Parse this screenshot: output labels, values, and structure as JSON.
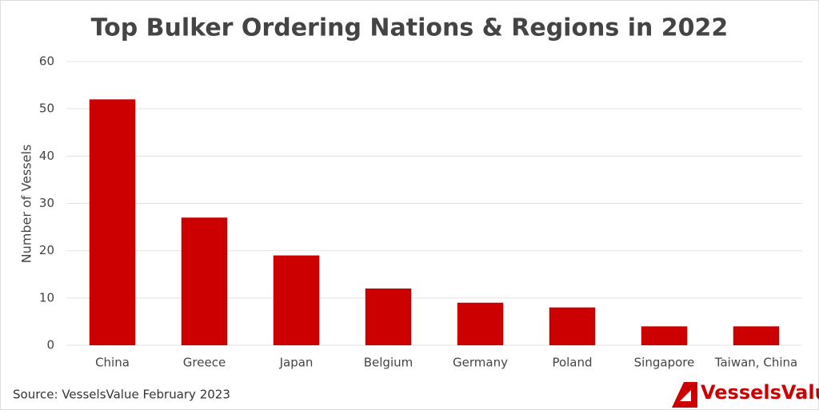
{
  "chart_data": {
    "type": "bar",
    "title": "Top Bulker Ordering Nations & Regions in 2022",
    "y_label": "Number of Vessels",
    "categories": [
      "China",
      "Greece",
      "Japan",
      "Belgium",
      "Germany",
      "Poland",
      "Singapore",
      "Taiwan, China"
    ],
    "values": [
      52,
      27,
      19,
      12,
      9,
      8,
      4,
      4
    ],
    "color": "#cc0000",
    "ylim": [
      0,
      60
    ],
    "yticks": [
      0,
      10,
      20,
      30,
      40,
      50,
      60
    ],
    "grid": true
  },
  "source": "Source: VesselsValue February 2023",
  "logo": "VesselsValue"
}
